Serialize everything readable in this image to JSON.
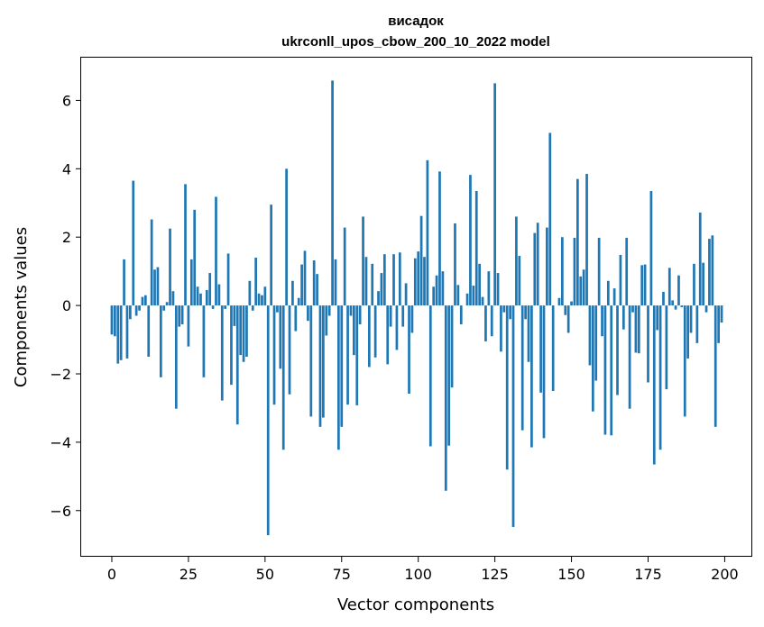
{
  "chart_data": {
    "type": "bar",
    "title": "висадок",
    "subtitle": "ukrconll_upos_cbow_200_10_2022 model",
    "xlabel": "Vector components",
    "ylabel": "Components values",
    "xlim": [
      -10,
      209
    ],
    "ylim": [
      -7.35,
      7.25
    ],
    "xticks": [
      0,
      25,
      50,
      75,
      100,
      125,
      150,
      175,
      200
    ],
    "yticks": [
      -6,
      -4,
      -2,
      0,
      2,
      4,
      6
    ],
    "ytick_labels": [
      "−6",
      "−4",
      "−2",
      "0",
      "2",
      "4",
      "6"
    ],
    "grid": false,
    "bar_color": "#1f77b4",
    "x": [
      0,
      1,
      2,
      3,
      4,
      5,
      6,
      7,
      8,
      9,
      10,
      11,
      12,
      13,
      14,
      15,
      16,
      17,
      18,
      19,
      20,
      21,
      22,
      23,
      24,
      25,
      26,
      27,
      28,
      29,
      30,
      31,
      32,
      33,
      34,
      35,
      36,
      37,
      38,
      39,
      40,
      41,
      42,
      43,
      44,
      45,
      46,
      47,
      48,
      49,
      50,
      51,
      52,
      53,
      54,
      55,
      56,
      57,
      58,
      59,
      60,
      61,
      62,
      63,
      64,
      65,
      66,
      67,
      68,
      69,
      70,
      71,
      72,
      73,
      74,
      75,
      76,
      77,
      78,
      79,
      80,
      81,
      82,
      83,
      84,
      85,
      86,
      87,
      88,
      89,
      90,
      91,
      92,
      93,
      94,
      95,
      96,
      97,
      98,
      99,
      100,
      101,
      102,
      103,
      104,
      105,
      106,
      107,
      108,
      109,
      110,
      111,
      112,
      113,
      114,
      115,
      116,
      117,
      118,
      119,
      120,
      121,
      122,
      123,
      124,
      125,
      126,
      127,
      128,
      129,
      130,
      131,
      132,
      133,
      134,
      135,
      136,
      137,
      138,
      139,
      140,
      141,
      142,
      143,
      144,
      145,
      146,
      147,
      148,
      149,
      150,
      151,
      152,
      153,
      154,
      155,
      156,
      157,
      158,
      159,
      160,
      161,
      162,
      163,
      164,
      165,
      166,
      167,
      168,
      169,
      170,
      171,
      172,
      173,
      174,
      175,
      176,
      177,
      178,
      179,
      180,
      181,
      182,
      183,
      184,
      185,
      186,
      187,
      188,
      189,
      190,
      191,
      192,
      193,
      194,
      195,
      196,
      197,
      198,
      199
    ],
    "values": [
      -0.85,
      -0.9,
      -1.7,
      -1.6,
      1.35,
      -1.55,
      -0.4,
      3.65,
      -0.3,
      -0.15,
      0.25,
      0.3,
      -1.5,
      2.52,
      1.05,
      1.12,
      -2.1,
      -0.15,
      0.1,
      2.25,
      0.42,
      -3.02,
      -0.62,
      -0.55,
      3.55,
      -1.2,
      1.35,
      2.8,
      0.55,
      0.35,
      -2.1,
      0.45,
      0.95,
      -0.1,
      3.18,
      0.62,
      -2.78,
      -0.1,
      1.52,
      -2.32,
      -0.6,
      -3.48,
      -1.45,
      -1.65,
      -1.5,
      0.72,
      -0.15,
      1.4,
      0.35,
      0.3,
      0.55,
      -6.72,
      2.95,
      -2.9,
      -0.2,
      -1.85,
      -4.22,
      4.0,
      -2.6,
      0.72,
      -0.75,
      0.22,
      1.2,
      1.6,
      -0.45,
      -3.25,
      1.32,
      0.92,
      -3.55,
      -3.28,
      -0.88,
      -0.3,
      6.58,
      1.35,
      -4.22,
      -3.55,
      2.28,
      -2.9,
      -0.3,
      -1.45,
      -2.92,
      -0.55,
      2.6,
      1.42,
      -1.8,
      1.22,
      -1.52,
      0.42,
      0.95,
      1.5,
      -1.72,
      -0.62,
      1.5,
      -1.3,
      1.55,
      -0.62,
      0.65,
      -2.58,
      -0.8,
      1.38,
      1.58,
      2.62,
      1.42,
      4.25,
      -4.12,
      0.55,
      0.88,
      3.92,
      1.0,
      -5.42,
      -4.1,
      -2.4,
      2.4,
      0.6,
      -0.55,
      0.0,
      0.35,
      3.82,
      0.58,
      3.35,
      1.22,
      0.25,
      -1.05,
      1.0,
      -0.9,
      6.5,
      0.95,
      -1.35,
      -0.2,
      -4.8,
      -0.4,
      -6.48,
      2.6,
      1.45,
      -3.65,
      -0.4,
      -1.65,
      -4.15,
      2.12,
      2.42,
      -2.55,
      -3.88,
      2.28,
      5.05,
      -2.5,
      0.0,
      0.22,
      2.0,
      -0.28,
      -0.8,
      0.12,
      1.98,
      3.7,
      0.85,
      1.05,
      3.85,
      -1.75,
      -3.1,
      -2.2,
      1.98,
      -0.9,
      -3.78,
      0.72,
      -3.8,
      0.5,
      -2.62,
      1.48,
      -0.7,
      1.98,
      -3.02,
      -0.2,
      -1.38,
      -1.4,
      1.18,
      1.2,
      -2.25,
      3.35,
      -4.65,
      -0.72,
      -4.22,
      0.4,
      -2.45,
      1.1,
      0.15,
      -0.12,
      0.88,
      -0.05,
      -3.25,
      -1.55,
      -0.8,
      1.22,
      -1.1,
      2.72,
      1.25,
      -0.2,
      1.95,
      2.05,
      -3.55,
      -1.1,
      -0.5
    ]
  }
}
